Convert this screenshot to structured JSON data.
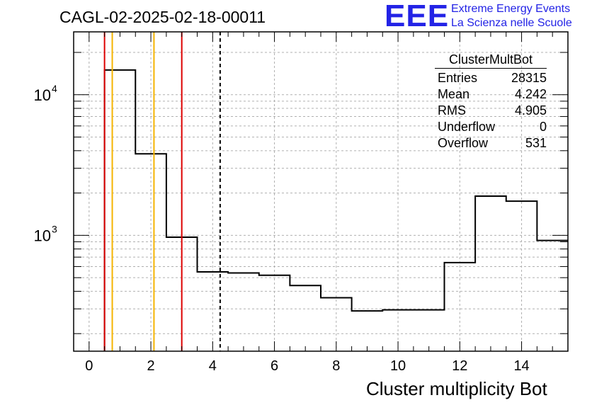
{
  "header": {
    "run_title": "CAGL-02-2025-02-18-00011",
    "logo_text": "EEE",
    "logo_line1": "Extreme Energy Events",
    "logo_line2": "La Scienza nelle Scuole",
    "logo_color": "#2323e6"
  },
  "stats_box": {
    "title": "ClusterMultBot",
    "rows": [
      {
        "label": "Entries",
        "value": "28315"
      },
      {
        "label": "Mean",
        "value": "4.242"
      },
      {
        "label": "RMS",
        "value": "4.905"
      },
      {
        "label": "Underflow",
        "value": "0"
      },
      {
        "label": "Overflow",
        "value": "531"
      }
    ]
  },
  "chart_data": {
    "type": "bar",
    "histogram": true,
    "xlabel": "Cluster multiplicity Bot",
    "ylabel": "",
    "xlim": [
      -0.5,
      15.5
    ],
    "ylim": [
      150,
      28000
    ],
    "yscale": "log",
    "grid": true,
    "x_ticks": [
      0,
      2,
      4,
      6,
      8,
      10,
      12,
      14
    ],
    "y_tick_labels": [
      {
        "value": 1000,
        "base": "10",
        "exp": "3"
      },
      {
        "value": 10000,
        "base": "10",
        "exp": "4"
      }
    ],
    "bins": {
      "edges": [
        0.5,
        1.5,
        2.5,
        3.5,
        4.5,
        5.5,
        6.5,
        7.5,
        8.5,
        9.5,
        10.5,
        11.5,
        12.5,
        13.5,
        14.5,
        15.5
      ],
      "values": [
        15000,
        3800,
        970,
        550,
        540,
        520,
        440,
        360,
        290,
        295,
        295,
        640,
        1900,
        1750,
        920
      ]
    },
    "vertical_lines": [
      {
        "x": 0.5,
        "color": "#dd0000",
        "style": "solid"
      },
      {
        "x": 0.75,
        "color": "#f5b400",
        "style": "solid"
      },
      {
        "x": 2.1,
        "color": "#f5b400",
        "style": "solid"
      },
      {
        "x": 3.0,
        "color": "#dd0000",
        "style": "solid"
      },
      {
        "x": 4.242,
        "color": "#000000",
        "style": "dashed"
      }
    ]
  }
}
